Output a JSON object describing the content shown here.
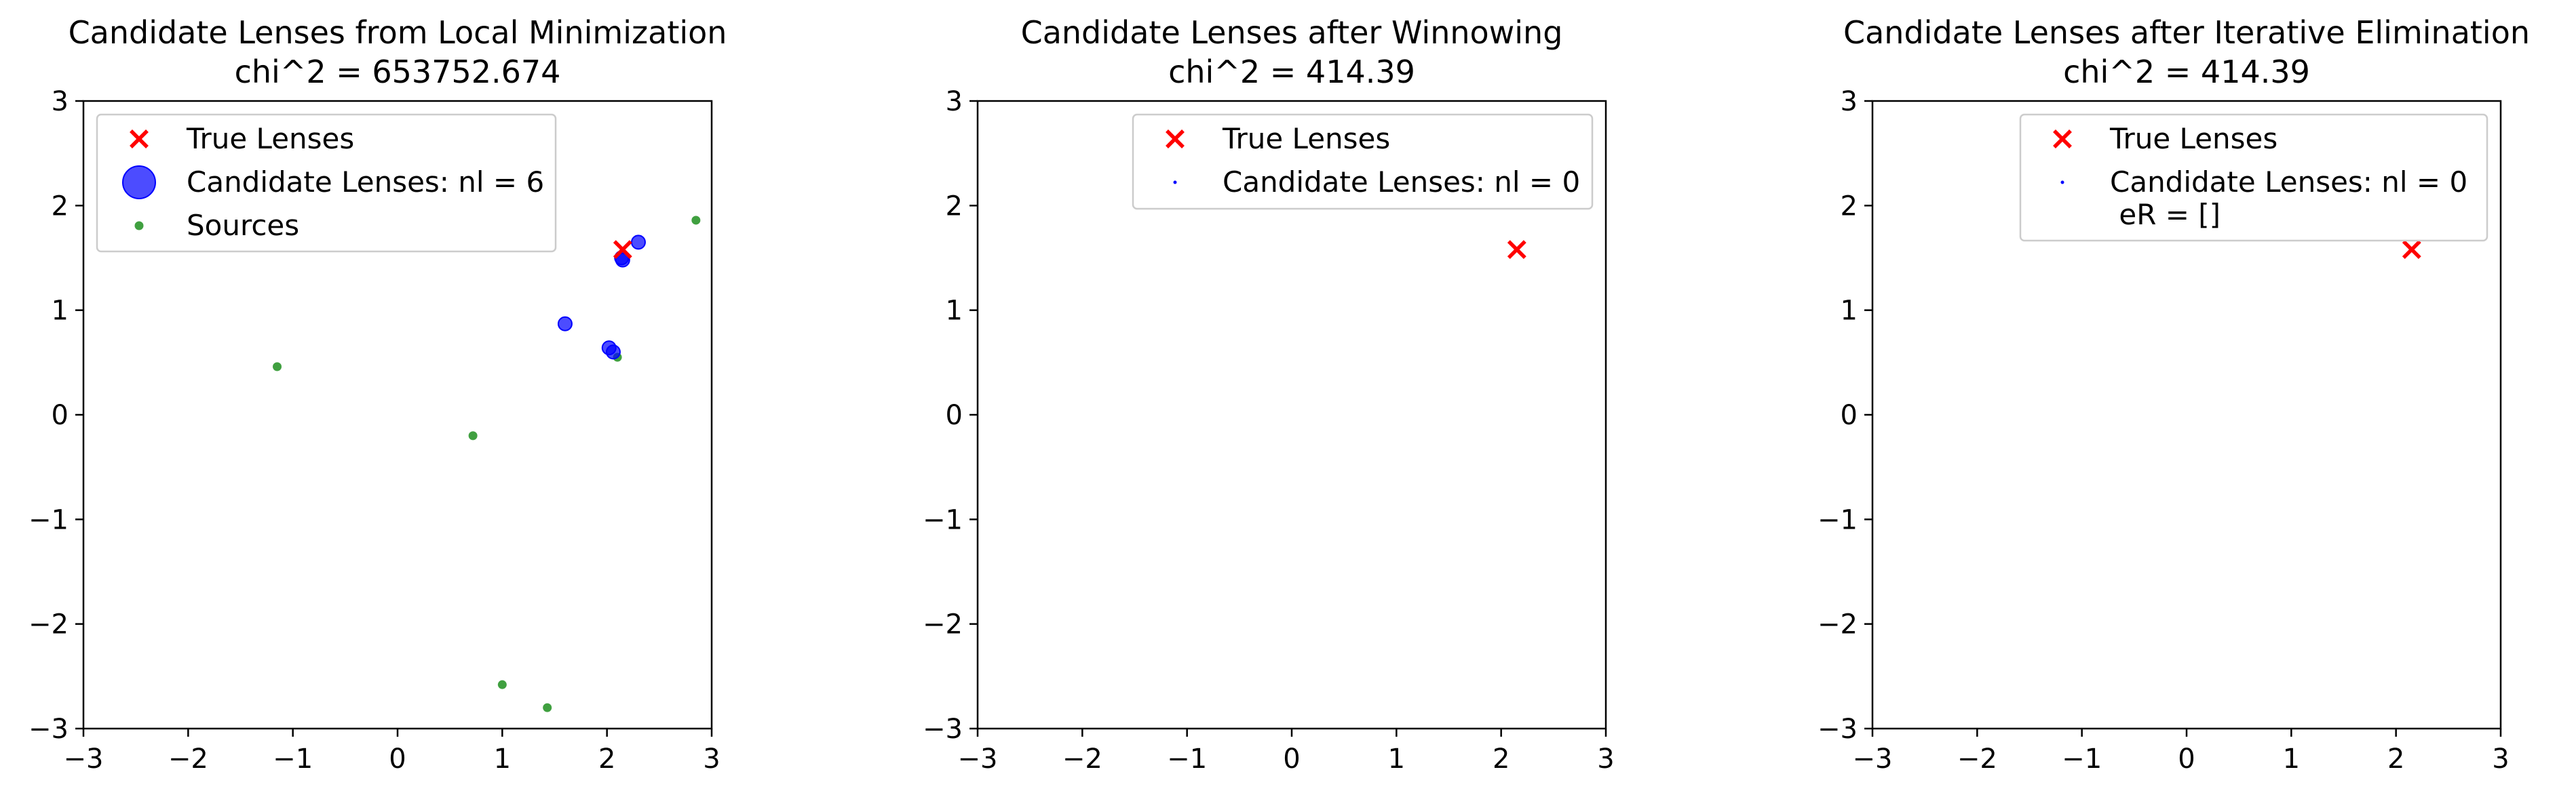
{
  "chart_data": [
    {
      "type": "scatter",
      "title": "Candidate Lenses from Local Minimization",
      "subtitle": "chi^2 = 653752.674",
      "xlim": [
        -3,
        3
      ],
      "ylim": [
        -3,
        3
      ],
      "xticks": [
        -3,
        -2,
        -1,
        0,
        1,
        2,
        3
      ],
      "yticks": [
        -3,
        -2,
        -1,
        0,
        1,
        2,
        3
      ],
      "grid": false,
      "legend_position": "top-left",
      "series": [
        {
          "name": "True Lenses",
          "marker": "x",
          "color": "#ff0000",
          "points": [
            [
              2.15,
              1.58
            ]
          ]
        },
        {
          "name": "Candidate Lenses: nl = 6",
          "marker": "circle",
          "color": "#0000ff",
          "points": [
            [
              2.3,
              1.65
            ],
            [
              2.15,
              1.48
            ],
            [
              2.14,
              1.5
            ],
            [
              1.6,
              0.87
            ],
            [
              2.02,
              0.64
            ],
            [
              2.06,
              0.6
            ]
          ]
        },
        {
          "name": "Sources",
          "marker": "dot",
          "color": "#008000",
          "points": [
            [
              2.85,
              1.86
            ],
            [
              -1.15,
              0.46
            ],
            [
              0.72,
              -0.2
            ],
            [
              2.1,
              0.55
            ],
            [
              1.0,
              -2.58
            ],
            [
              1.43,
              -2.8
            ]
          ]
        }
      ]
    },
    {
      "type": "scatter",
      "title": "Candidate Lenses after Winnowing",
      "subtitle": "chi^2 = 414.39",
      "xlim": [
        -3,
        3
      ],
      "ylim": [
        -3,
        3
      ],
      "xticks": [
        -3,
        -2,
        -1,
        0,
        1,
        2,
        3
      ],
      "yticks": [
        -3,
        -2,
        -1,
        0,
        1,
        2,
        3
      ],
      "grid": false,
      "legend_position": "top-right",
      "series": [
        {
          "name": "True Lenses",
          "marker": "x",
          "color": "#ff0000",
          "points": [
            [
              2.15,
              1.58
            ]
          ]
        },
        {
          "name": "Candidate Lenses: nl = 0",
          "marker": "tiny",
          "color": "#0000ff",
          "points": []
        }
      ]
    },
    {
      "type": "scatter",
      "title": "Candidate Lenses after Iterative Elimination",
      "subtitle": "chi^2 = 414.39",
      "xlim": [
        -3,
        3
      ],
      "ylim": [
        -3,
        3
      ],
      "xticks": [
        -3,
        -2,
        -1,
        0,
        1,
        2,
        3
      ],
      "yticks": [
        -3,
        -2,
        -1,
        0,
        1,
        2,
        3
      ],
      "grid": false,
      "legend_position": "top-right",
      "series": [
        {
          "name": "True Lenses",
          "marker": "x",
          "color": "#ff0000",
          "points": [
            [
              2.15,
              1.58
            ]
          ]
        },
        {
          "name": "Candidate Lenses: nl = 0",
          "name_line2": " eR = []",
          "marker": "tiny",
          "color": "#0000ff",
          "points": []
        }
      ]
    }
  ]
}
